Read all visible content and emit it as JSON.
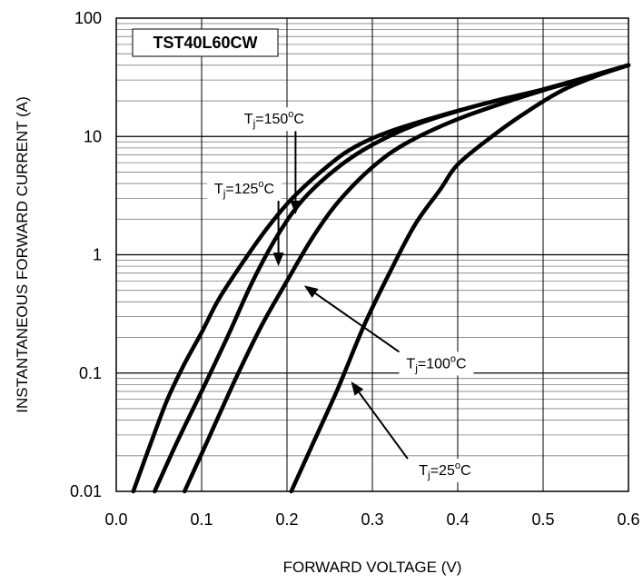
{
  "chart_data": {
    "type": "line",
    "title": "TST40L60CW",
    "xlabel": "FORWARD VOLTAGE (V)",
    "ylabel": "INSTANTANEOUS FORWARD CURRENT (A)",
    "xlim": [
      0.0,
      0.6
    ],
    "ylim": [
      0.01,
      100
    ],
    "yscale": "log",
    "grid": true,
    "x_ticks": [
      "0.0",
      "0.1",
      "0.2",
      "0.3",
      "0.4",
      "0.5",
      "0.6"
    ],
    "y_ticks": [
      "0.01",
      "0.1",
      "1",
      "10",
      "100"
    ],
    "series": [
      {
        "name": "150",
        "points": [
          [
            0.02,
            0.01
          ],
          [
            0.04,
            0.025
          ],
          [
            0.06,
            0.06
          ],
          [
            0.08,
            0.12
          ],
          [
            0.1,
            0.22
          ],
          [
            0.12,
            0.42
          ],
          [
            0.15,
            0.9
          ],
          [
            0.18,
            1.8
          ],
          [
            0.21,
            3.2
          ],
          [
            0.25,
            5.8
          ],
          [
            0.28,
            8.2
          ],
          [
            0.32,
            11
          ],
          [
            0.38,
            15
          ],
          [
            0.45,
            20.5
          ],
          [
            0.52,
            27
          ],
          [
            0.6,
            40
          ]
        ]
      },
      {
        "name": "125",
        "points": [
          [
            0.045,
            0.01
          ],
          [
            0.07,
            0.025
          ],
          [
            0.1,
            0.07
          ],
          [
            0.13,
            0.2
          ],
          [
            0.16,
            0.6
          ],
          [
            0.19,
            1.5
          ],
          [
            0.22,
            3
          ],
          [
            0.26,
            5.5
          ],
          [
            0.3,
            8.5
          ],
          [
            0.35,
            12.5
          ],
          [
            0.42,
            18
          ],
          [
            0.5,
            25
          ],
          [
            0.6,
            40
          ]
        ]
      },
      {
        "name": "100",
        "points": [
          [
            0.08,
            0.01
          ],
          [
            0.11,
            0.03
          ],
          [
            0.14,
            0.09
          ],
          [
            0.17,
            0.25
          ],
          [
            0.2,
            0.6
          ],
          [
            0.23,
            1.4
          ],
          [
            0.26,
            2.8
          ],
          [
            0.3,
            5.5
          ],
          [
            0.34,
            8.8
          ],
          [
            0.4,
            14
          ],
          [
            0.47,
            21
          ],
          [
            0.54,
            30
          ],
          [
            0.6,
            40
          ]
        ]
      },
      {
        "name": "25",
        "points": [
          [
            0.205,
            0.01
          ],
          [
            0.23,
            0.025
          ],
          [
            0.26,
            0.075
          ],
          [
            0.29,
            0.25
          ],
          [
            0.32,
            0.7
          ],
          [
            0.35,
            1.8
          ],
          [
            0.38,
            3.6
          ],
          [
            0.4,
            5.8
          ],
          [
            0.44,
            10
          ],
          [
            0.48,
            16
          ],
          [
            0.52,
            24
          ],
          [
            0.56,
            32
          ],
          [
            0.6,
            40
          ]
        ]
      }
    ],
    "annotations": [
      {
        "label": "150",
        "text_anchor": [
          0.185,
          14
        ],
        "arrow_to": [
          0.21,
          2.2
        ]
      },
      {
        "label": "125",
        "text_anchor": [
          0.15,
          3.6
        ],
        "arrow_to": [
          0.19,
          0.8
        ]
      },
      {
        "label": "100",
        "text_anchor": [
          0.375,
          0.12
        ],
        "arrow_to": [
          0.22,
          0.55
        ]
      },
      {
        "label": "25",
        "text_anchor": [
          0.385,
          0.015
        ],
        "arrow_to": [
          0.275,
          0.085
        ]
      }
    ],
    "annotation_prefix": "T",
    "annotation_subscript": "j",
    "annotation_eq": "=",
    "annotation_sup": "o",
    "annotation_unit": "C"
  }
}
